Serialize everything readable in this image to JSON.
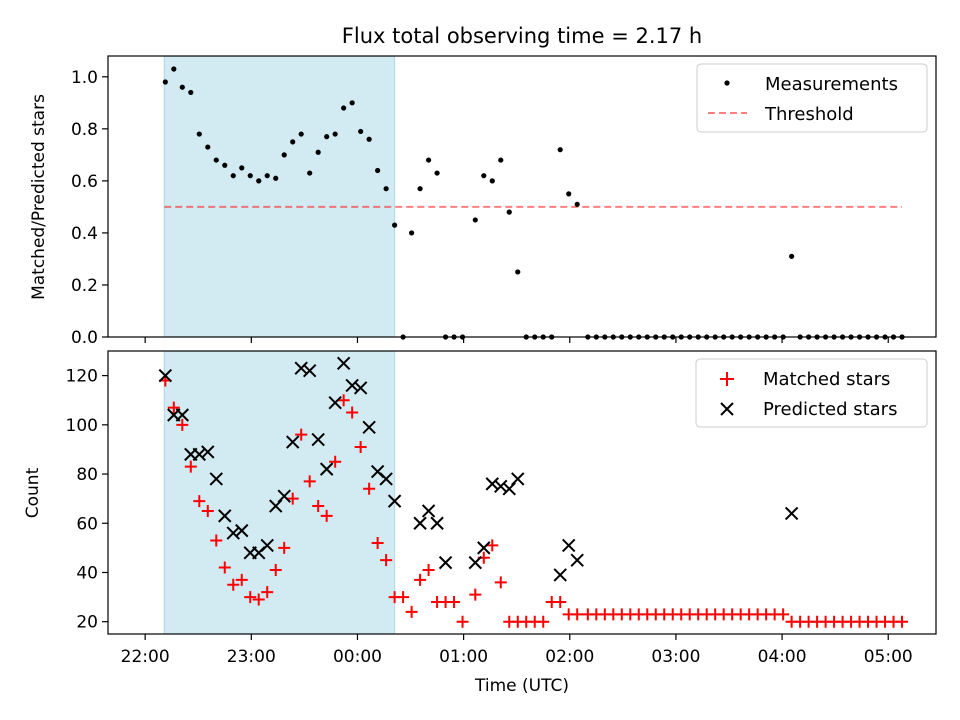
{
  "title": "Flux total observing time = 2.17 h",
  "colors": {
    "shade": "#add8e6",
    "threshold": "#ff0000",
    "measurement": "#000000",
    "matched": "#ff0000",
    "predicted": "#000000"
  },
  "shaded_span_hours": [
    22.18,
    24.35
  ],
  "x_axis": {
    "label": "Time (UTC)",
    "ticks": [
      22,
      23,
      24,
      25,
      26,
      27,
      28,
      29
    ],
    "tick_labels": [
      "22:00",
      "23:00",
      "00:00",
      "01:00",
      "02:00",
      "03:00",
      "04:00",
      "05:00"
    ],
    "xlim": [
      21.65,
      29.45
    ]
  },
  "chart_data": [
    {
      "type": "scatter",
      "ylabel": "Matched/Predicted stars",
      "ylim": [
        0,
        1.08
      ],
      "yticks": [
        0.0,
        0.2,
        0.4,
        0.6,
        0.8,
        1.0
      ],
      "ytick_labels": [
        "0.0",
        "0.2",
        "0.4",
        "0.6",
        "0.8",
        "1.0"
      ],
      "legend_position": "top-right",
      "threshold": {
        "name": "Threshold",
        "y": 0.5,
        "x_range": [
          22.18,
          29.13
        ]
      },
      "series": [
        {
          "name": "Measurements",
          "marker": "dot",
          "x": [
            22.19,
            22.27,
            22.35,
            22.43,
            22.51,
            22.59,
            22.67,
            22.75,
            22.83,
            22.91,
            22.99,
            23.07,
            23.15,
            23.23,
            23.31,
            23.39,
            23.47,
            23.55,
            23.63,
            23.71,
            23.79,
            23.87,
            23.95,
            24.03,
            24.11,
            24.19,
            24.27,
            24.35,
            24.43,
            24.51,
            24.59,
            24.67,
            24.75,
            24.83,
            24.91,
            24.99,
            25.11,
            25.19,
            25.27,
            25.35,
            25.43,
            25.51,
            25.59,
            25.67,
            25.75,
            25.83,
            25.91,
            25.99,
            26.07,
            26.17,
            26.25,
            26.33,
            26.41,
            26.49,
            26.57,
            26.65,
            26.73,
            26.81,
            26.89,
            26.97,
            27.05,
            27.13,
            27.21,
            27.29,
            27.37,
            27.45,
            27.53,
            27.61,
            27.69,
            27.77,
            27.85,
            27.93,
            28.01,
            28.09,
            28.17,
            28.25,
            28.33,
            28.41,
            28.49,
            28.57,
            28.65,
            28.73,
            28.81,
            28.89,
            28.97,
            29.05,
            29.13
          ],
          "y": [
            0.98,
            1.03,
            0.96,
            0.94,
            0.78,
            0.73,
            0.68,
            0.66,
            0.62,
            0.65,
            0.62,
            0.6,
            0.62,
            0.61,
            0.7,
            0.75,
            0.78,
            0.63,
            0.71,
            0.77,
            0.78,
            0.88,
            0.9,
            0.79,
            0.76,
            0.64,
            0.57,
            0.43,
            0.0,
            0.4,
            0.57,
            0.68,
            0.63,
            0.0,
            0.0,
            0.0,
            0.45,
            0.62,
            0.6,
            0.68,
            0.48,
            0.25,
            0.0,
            0.0,
            0.0,
            0.0,
            0.72,
            0.55,
            0.51,
            0.0,
            0.0,
            0.0,
            0.0,
            0.0,
            0.0,
            0.0,
            0.0,
            0.0,
            0.0,
            0.0,
            0.0,
            0.0,
            0.0,
            0.0,
            0.0,
            0.0,
            0.0,
            0.0,
            0.0,
            0.0,
            0.0,
            0.0,
            0.0,
            0.31,
            0.0,
            0.0,
            0.0,
            0.0,
            0.0,
            0.0,
            0.0,
            0.0,
            0.0,
            0.0,
            0.0,
            0.0,
            0.0
          ]
        }
      ]
    },
    {
      "type": "scatter",
      "ylabel": "Count",
      "ylim": [
        15,
        130
      ],
      "yticks": [
        20,
        40,
        60,
        80,
        100,
        120
      ],
      "ytick_labels": [
        "20",
        "40",
        "60",
        "80",
        "100",
        "120"
      ],
      "legend_position": "top-right",
      "series": [
        {
          "name": "Matched stars",
          "marker": "plus",
          "x": [
            22.19,
            22.27,
            22.35,
            22.43,
            22.51,
            22.59,
            22.67,
            22.75,
            22.83,
            22.91,
            22.99,
            23.07,
            23.15,
            23.23,
            23.31,
            23.39,
            23.47,
            23.55,
            23.63,
            23.71,
            23.79,
            23.87,
            23.95,
            24.03,
            24.11,
            24.19,
            24.27,
            24.35,
            24.43,
            24.51,
            24.59,
            24.67,
            24.75,
            24.83,
            24.91,
            24.99,
            25.11,
            25.19,
            25.27,
            25.35,
            25.43,
            25.51,
            25.59,
            25.67,
            25.75,
            25.83,
            25.91,
            25.99,
            26.07,
            26.17,
            26.25,
            26.33,
            26.41,
            26.49,
            26.57,
            26.65,
            26.73,
            26.81,
            26.89,
            26.97,
            27.05,
            27.13,
            27.21,
            27.29,
            27.37,
            27.45,
            27.53,
            27.61,
            27.69,
            27.77,
            27.85,
            27.93,
            28.01,
            28.09,
            28.17,
            28.25,
            28.33,
            28.41,
            28.49,
            28.57,
            28.65,
            28.73,
            28.81,
            28.89,
            28.97,
            29.05,
            29.13
          ],
          "y": [
            118,
            107,
            100,
            83,
            69,
            65,
            53,
            42,
            35,
            37,
            30,
            29,
            32,
            41,
            50,
            70,
            96,
            77,
            67,
            63,
            85,
            110,
            105,
            91,
            74,
            52,
            45,
            30,
            30,
            24,
            37,
            41,
            28,
            28,
            28,
            20,
            31,
            46,
            51,
            36,
            20,
            20,
            20,
            20,
            20,
            28,
            28,
            23,
            23,
            23,
            23,
            23,
            23,
            23,
            23,
            23,
            23,
            23,
            23,
            23,
            23,
            23,
            23,
            23,
            23,
            23,
            23,
            23,
            23,
            23,
            23,
            23,
            23,
            20,
            20,
            20,
            20,
            20,
            20,
            20,
            20,
            20,
            20,
            20,
            20,
            20,
            20
          ]
        },
        {
          "name": "Predicted stars",
          "marker": "cross",
          "x": [
            22.19,
            22.27,
            22.35,
            22.43,
            22.51,
            22.59,
            22.67,
            22.75,
            22.83,
            22.91,
            22.99,
            23.07,
            23.15,
            23.23,
            23.31,
            23.39,
            23.47,
            23.55,
            23.63,
            23.71,
            23.79,
            23.87,
            23.95,
            24.03,
            24.11,
            24.19,
            24.27,
            24.35,
            24.59,
            24.67,
            24.75,
            24.83,
            25.11,
            25.19,
            25.27,
            25.35,
            25.43,
            25.51,
            25.91,
            25.99,
            26.07,
            28.09
          ],
          "y": [
            120,
            104,
            104,
            88,
            88,
            89,
            78,
            63,
            56,
            57,
            48,
            48,
            51,
            67,
            71,
            93,
            123,
            122,
            94,
            82,
            109,
            125,
            116,
            115,
            99,
            81,
            78,
            69,
            60,
            65,
            60,
            44,
            44,
            50,
            76,
            75,
            74,
            78,
            39,
            51,
            45,
            64
          ]
        }
      ]
    }
  ]
}
